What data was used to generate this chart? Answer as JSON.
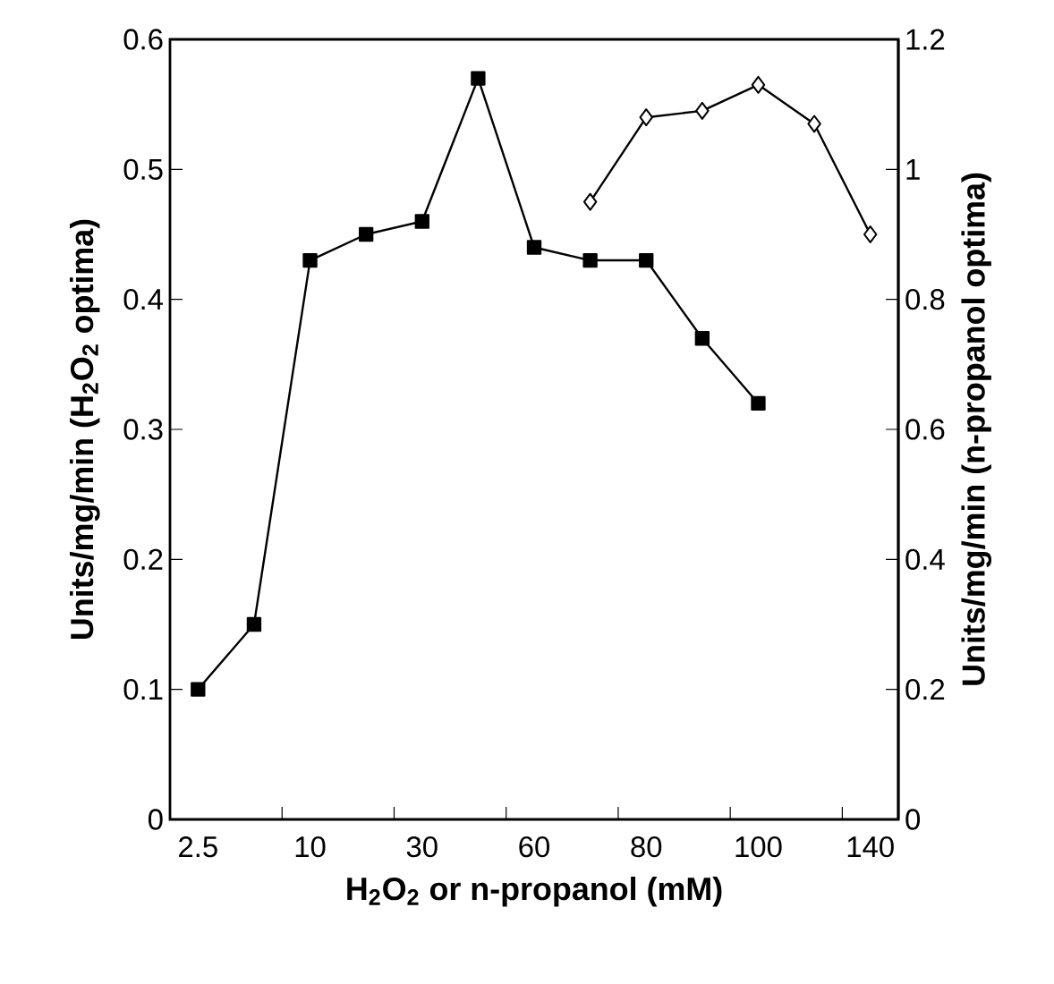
{
  "chart_data": {
    "type": "line",
    "xlabel": "H$_{2}$O$_{2}$ or  n-propanol (mM)",
    "ylabel": "Units/mg/min (H$_{2}$O$_{2}$ optima)",
    "y2label": "Units/mg/min (n-propanol optima)",
    "categories": [
      "2.5",
      null,
      "10",
      null,
      "30",
      null,
      "60",
      null,
      "80",
      null,
      "100",
      null,
      "140"
    ],
    "series": [
      {
        "color": "#000000",
        "marker": "square",
        "values": [
          0.1,
          0.15,
          0.43,
          0.45,
          0.46,
          0.57,
          0.44,
          0.43,
          0.43,
          0.37,
          0.32,
          null,
          null
        ]
      },
      {
        "color": "#000000",
        "marker": "diamond",
        "axis": "y2",
        "values": [
          null,
          null,
          null,
          null,
          null,
          null,
          null,
          0.95,
          1.08,
          1.09,
          1.13,
          1.07,
          0.9
        ]
      }
    ],
    "ylim": [
      0,
      0.6
    ],
    "yticks": [
      0,
      0.1,
      0.2,
      0.3,
      0.4,
      0.5,
      0.6
    ],
    "y2lim": [
      0,
      1.2
    ],
    "y2ticks": [
      0,
      0.2,
      0.4,
      0.6,
      0.8,
      1,
      1.2
    ],
    "grid": false,
    "line_style": "solid"
  }
}
